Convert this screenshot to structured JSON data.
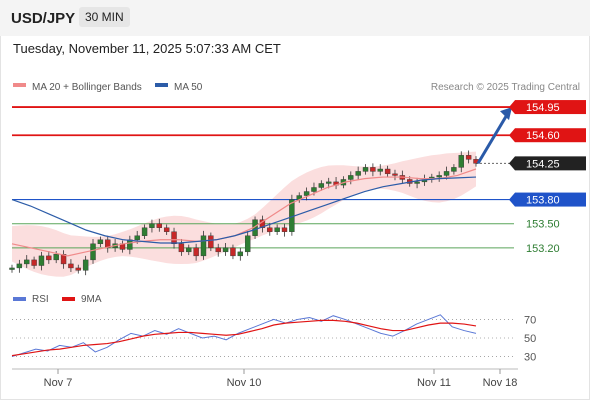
{
  "header": {
    "symbol": "USD/JPY",
    "timeframe": "30 MIN",
    "datetime": "Tuesday, November 11, 2025 5:07:33 AM CET"
  },
  "legend": {
    "ma20": {
      "label": "MA 20 + Bollinger Bands",
      "color": "#f08a8a"
    },
    "ma50": {
      "label": "MA 50",
      "color": "#2c5ca8"
    },
    "credit": "Research © 2025 Trading Central"
  },
  "colors": {
    "resistance": "#e01414",
    "support_blue": "#1f53c9",
    "support_green": "#5aa55a",
    "band_fill": "#fbdede",
    "candle_up": "#2e7d32",
    "candle_down": "#c62828",
    "arrow": "#2a5aa8",
    "rsi": "#5a78d6",
    "rsi_ma": "#e01414"
  },
  "chart_data": [
    {
      "type": "candlestick",
      "title": "USD/JPY",
      "timeframe": "30 MIN",
      "x_ticks": [
        "Nov 7",
        "Nov 10",
        "Nov 11",
        "Nov 18"
      ],
      "ylim": [
        152.8,
        155.1
      ],
      "last_price": 154.25,
      "levels": [
        {
          "value": 154.95,
          "label": "154.95",
          "kind": "resistance"
        },
        {
          "value": 154.6,
          "label": "154.60",
          "kind": "resistance"
        },
        {
          "value": 154.25,
          "label": "154.25",
          "kind": "last"
        },
        {
          "value": 153.8,
          "label": "153.80",
          "kind": "support_blue"
        },
        {
          "value": 153.5,
          "label": "153.50",
          "kind": "support_green"
        },
        {
          "value": 153.2,
          "label": "153.20",
          "kind": "support_green"
        }
      ],
      "close_path": [
        152.95,
        153.0,
        153.05,
        152.98,
        153.1,
        153.05,
        153.12,
        153.0,
        152.95,
        152.92,
        153.05,
        153.25,
        153.3,
        153.2,
        153.25,
        153.18,
        153.3,
        153.35,
        153.45,
        153.5,
        153.45,
        153.4,
        153.25,
        153.15,
        153.2,
        153.1,
        153.35,
        153.2,
        153.15,
        153.2,
        153.1,
        153.15,
        153.35,
        153.55,
        153.45,
        153.4,
        153.45,
        153.4
      ],
      "close_path_2": [
        153.8,
        153.85,
        153.9,
        153.95,
        154.0,
        154.02,
        153.98,
        154.05,
        154.1,
        154.15,
        154.2,
        154.15,
        154.18,
        154.12,
        154.1,
        154.05,
        154.0,
        154.02,
        154.05,
        154.08,
        154.1,
        154.15,
        154.2,
        154.35,
        154.3,
        154.25
      ],
      "ma20": [
        153.25,
        153.2,
        153.15,
        153.1,
        153.15,
        153.2,
        153.25,
        153.28,
        153.3,
        153.3,
        153.28,
        153.3,
        153.35,
        153.45,
        153.6,
        153.75,
        153.85,
        153.95,
        154.02,
        154.06,
        154.08,
        154.08,
        154.06,
        154.06,
        154.1,
        154.18
      ],
      "ma50": [
        153.8,
        153.72,
        153.62,
        153.52,
        153.42,
        153.35,
        153.3,
        153.28,
        153.26,
        153.26,
        153.28,
        153.3,
        153.35,
        153.42,
        153.5,
        153.58,
        153.66,
        153.74,
        153.82,
        153.9,
        153.96,
        154.0,
        154.04,
        154.06,
        154.07,
        154.08
      ],
      "forecast_target": 154.95
    },
    {
      "type": "line",
      "series": [
        {
          "name": "RSI",
          "values": [
            30,
            34,
            38,
            36,
            42,
            40,
            45,
            35,
            40,
            48,
            55,
            52,
            58,
            54,
            60,
            55,
            50,
            52,
            48,
            55,
            60,
            65,
            70,
            66,
            70,
            72,
            68,
            74,
            70,
            65,
            60,
            55,
            52,
            58,
            65,
            70,
            75,
            62,
            58,
            55
          ]
        },
        {
          "name": "9MA",
          "values": [
            31,
            33,
            35,
            37,
            38,
            40,
            42,
            43,
            44,
            46,
            49,
            52,
            54,
            55,
            56,
            56,
            55,
            54,
            53,
            54,
            57,
            60,
            64,
            66,
            67,
            68,
            69,
            69,
            68,
            66,
            63,
            60,
            58,
            58,
            61,
            64,
            66,
            66,
            65,
            63
          ]
        }
      ],
      "ylim": [
        22,
        78
      ],
      "y_ticks": [
        "70",
        "50",
        "30"
      ]
    }
  ]
}
